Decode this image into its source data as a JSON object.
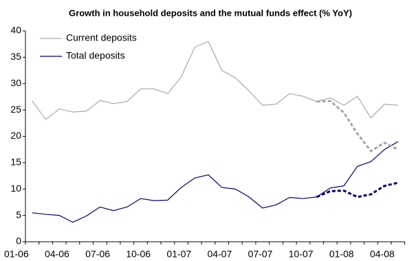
{
  "chart_data": {
    "type": "line",
    "title": "Growth in household deposits and the mutual funds effect (% YoY)",
    "categories": [
      "01-06",
      null,
      null,
      "04-06",
      null,
      null,
      "07-06",
      null,
      null,
      "10-06",
      null,
      null,
      "01-07",
      null,
      null,
      "04-07",
      null,
      null,
      "07-07",
      null,
      null,
      "10-07",
      null,
      null,
      "01-08",
      null,
      null,
      "04-08"
    ],
    "series": [
      {
        "name": "Current deposits",
        "color": "#a6a6a6",
        "dashed": false,
        "values": [
          26.7,
          23.2,
          25.2,
          24.6,
          24.8,
          26.8,
          26.2,
          26.6,
          29.0,
          29.0,
          28.1,
          31.3,
          36.9,
          38.0,
          32.5,
          31.1,
          28.6,
          25.9,
          26.1,
          28.1,
          27.6,
          26.6,
          27.3,
          25.9,
          27.6,
          23.5,
          26.1,
          25.9
        ]
      },
      {
        "name": "Total deposits",
        "color": "#000066",
        "dashed": false,
        "values": [
          5.5,
          5.2,
          5.0,
          3.7,
          4.9,
          6.6,
          5.9,
          6.6,
          8.2,
          7.8,
          7.9,
          10.3,
          12.1,
          12.7,
          10.3,
          10.0,
          8.5,
          6.4,
          7.0,
          8.4,
          8.2,
          8.5,
          10.2,
          10.6,
          14.3,
          15.2,
          17.5,
          19.0
        ]
      },
      {
        "color": "#a6a6a6",
        "dashed": true,
        "values": [
          null,
          null,
          null,
          null,
          null,
          null,
          null,
          null,
          null,
          null,
          null,
          null,
          null,
          null,
          null,
          null,
          null,
          null,
          null,
          null,
          null,
          26.6,
          26.7,
          24.5,
          20.5,
          17.2,
          18.8,
          17.5
        ]
      },
      {
        "color": "#000066",
        "dashed": true,
        "values": [
          null,
          null,
          null,
          null,
          null,
          null,
          null,
          null,
          null,
          null,
          null,
          null,
          null,
          null,
          null,
          null,
          null,
          null,
          null,
          null,
          null,
          8.5,
          9.6,
          9.7,
          8.5,
          9.0,
          10.6,
          11.2
        ]
      }
    ],
    "ylim": [
      0,
      40
    ],
    "yticks": [
      0,
      5,
      10,
      15,
      20,
      25,
      30,
      35,
      40
    ],
    "grid": false
  }
}
